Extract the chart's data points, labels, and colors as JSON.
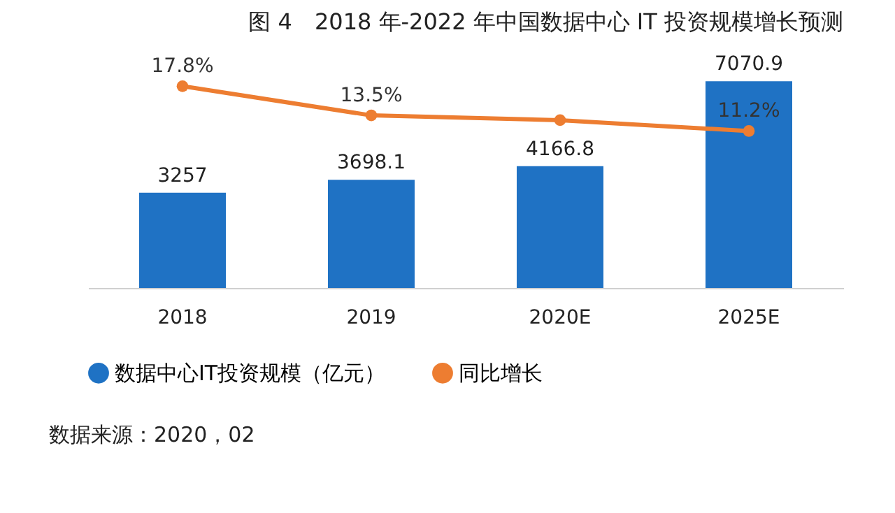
{
  "chart_data": {
    "type": "bar",
    "title": "图 4　2018 年-2022 年中国数据中心 IT 投资规模增长预测",
    "categories": [
      "2018",
      "2019",
      "2020E",
      "2025E"
    ],
    "series": [
      {
        "name": "数据中心IT投资规模（亿元）",
        "color": "#1f72c4",
        "values": [
          3257,
          3698.1,
          4166.8,
          7070.9
        ],
        "value_labels": [
          "3257",
          "3698.1",
          "4166.8",
          "7070.9"
        ]
      },
      {
        "name": "同比增长",
        "type": "line",
        "axis": "y2",
        "color": "#ed7d31",
        "marker": "circle",
        "values": [
          17.8,
          13.5,
          12.8,
          11.2
        ],
        "value_labels": [
          "17.8%",
          "13.5%",
          null,
          "11.2%"
        ]
      }
    ],
    "tick_labels": "x",
    "grid": false,
    "legend": "bottom",
    "annotations": [
      "数据来源：2020，02"
    ]
  }
}
